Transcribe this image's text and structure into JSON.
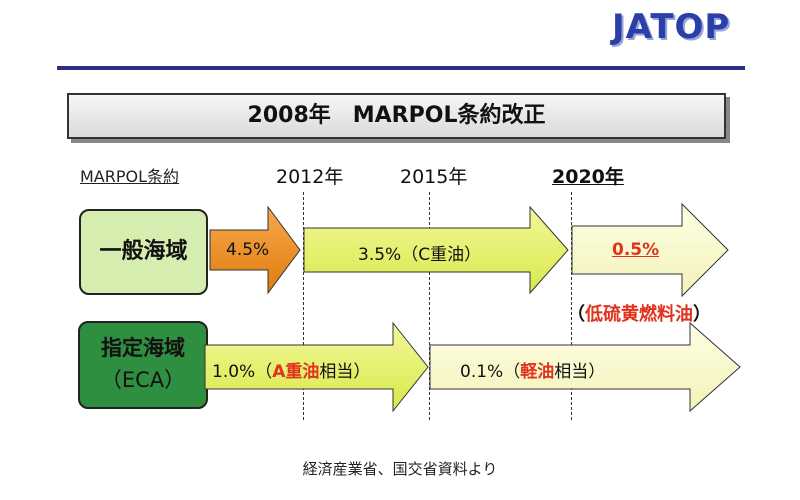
{
  "logo": "JATOP",
  "title": "2008年　MARPOL条約改正",
  "legend_label": "MARPOL条約",
  "years": [
    "2012年",
    "2015年",
    "2020年"
  ],
  "zones": {
    "general": "一般海域",
    "eca_line1": "指定海域",
    "eca_line2": "（ECA）"
  },
  "general_row": {
    "seg1": "4.5%",
    "seg2_prefix": "3.5%（",
    "seg2_fuel": "C重油",
    "seg2_suffix": "）",
    "seg3": "0.5%",
    "note_open": "（",
    "note_fuel": "低硫黄燃料油",
    "note_close": "）"
  },
  "eca_row": {
    "seg1_prefix": "1.0%（",
    "seg1_fuel": "A重油",
    "seg1_suffix": "相当）",
    "seg2_prefix": "0.1%（",
    "seg2_fuel": "軽油",
    "seg2_suffix": "相当）"
  },
  "source": "経済産業省、国交省資料より",
  "colors": {
    "brand": "#2a3fa8",
    "rule": "#2b2f86",
    "orange": "#f0901e",
    "yellow_green": "#e6f26a",
    "pale_yellow": "#fafad0",
    "general_zone": "#d6edb0",
    "eca_zone": "#2f8f41",
    "highlight": "#e0321c"
  }
}
